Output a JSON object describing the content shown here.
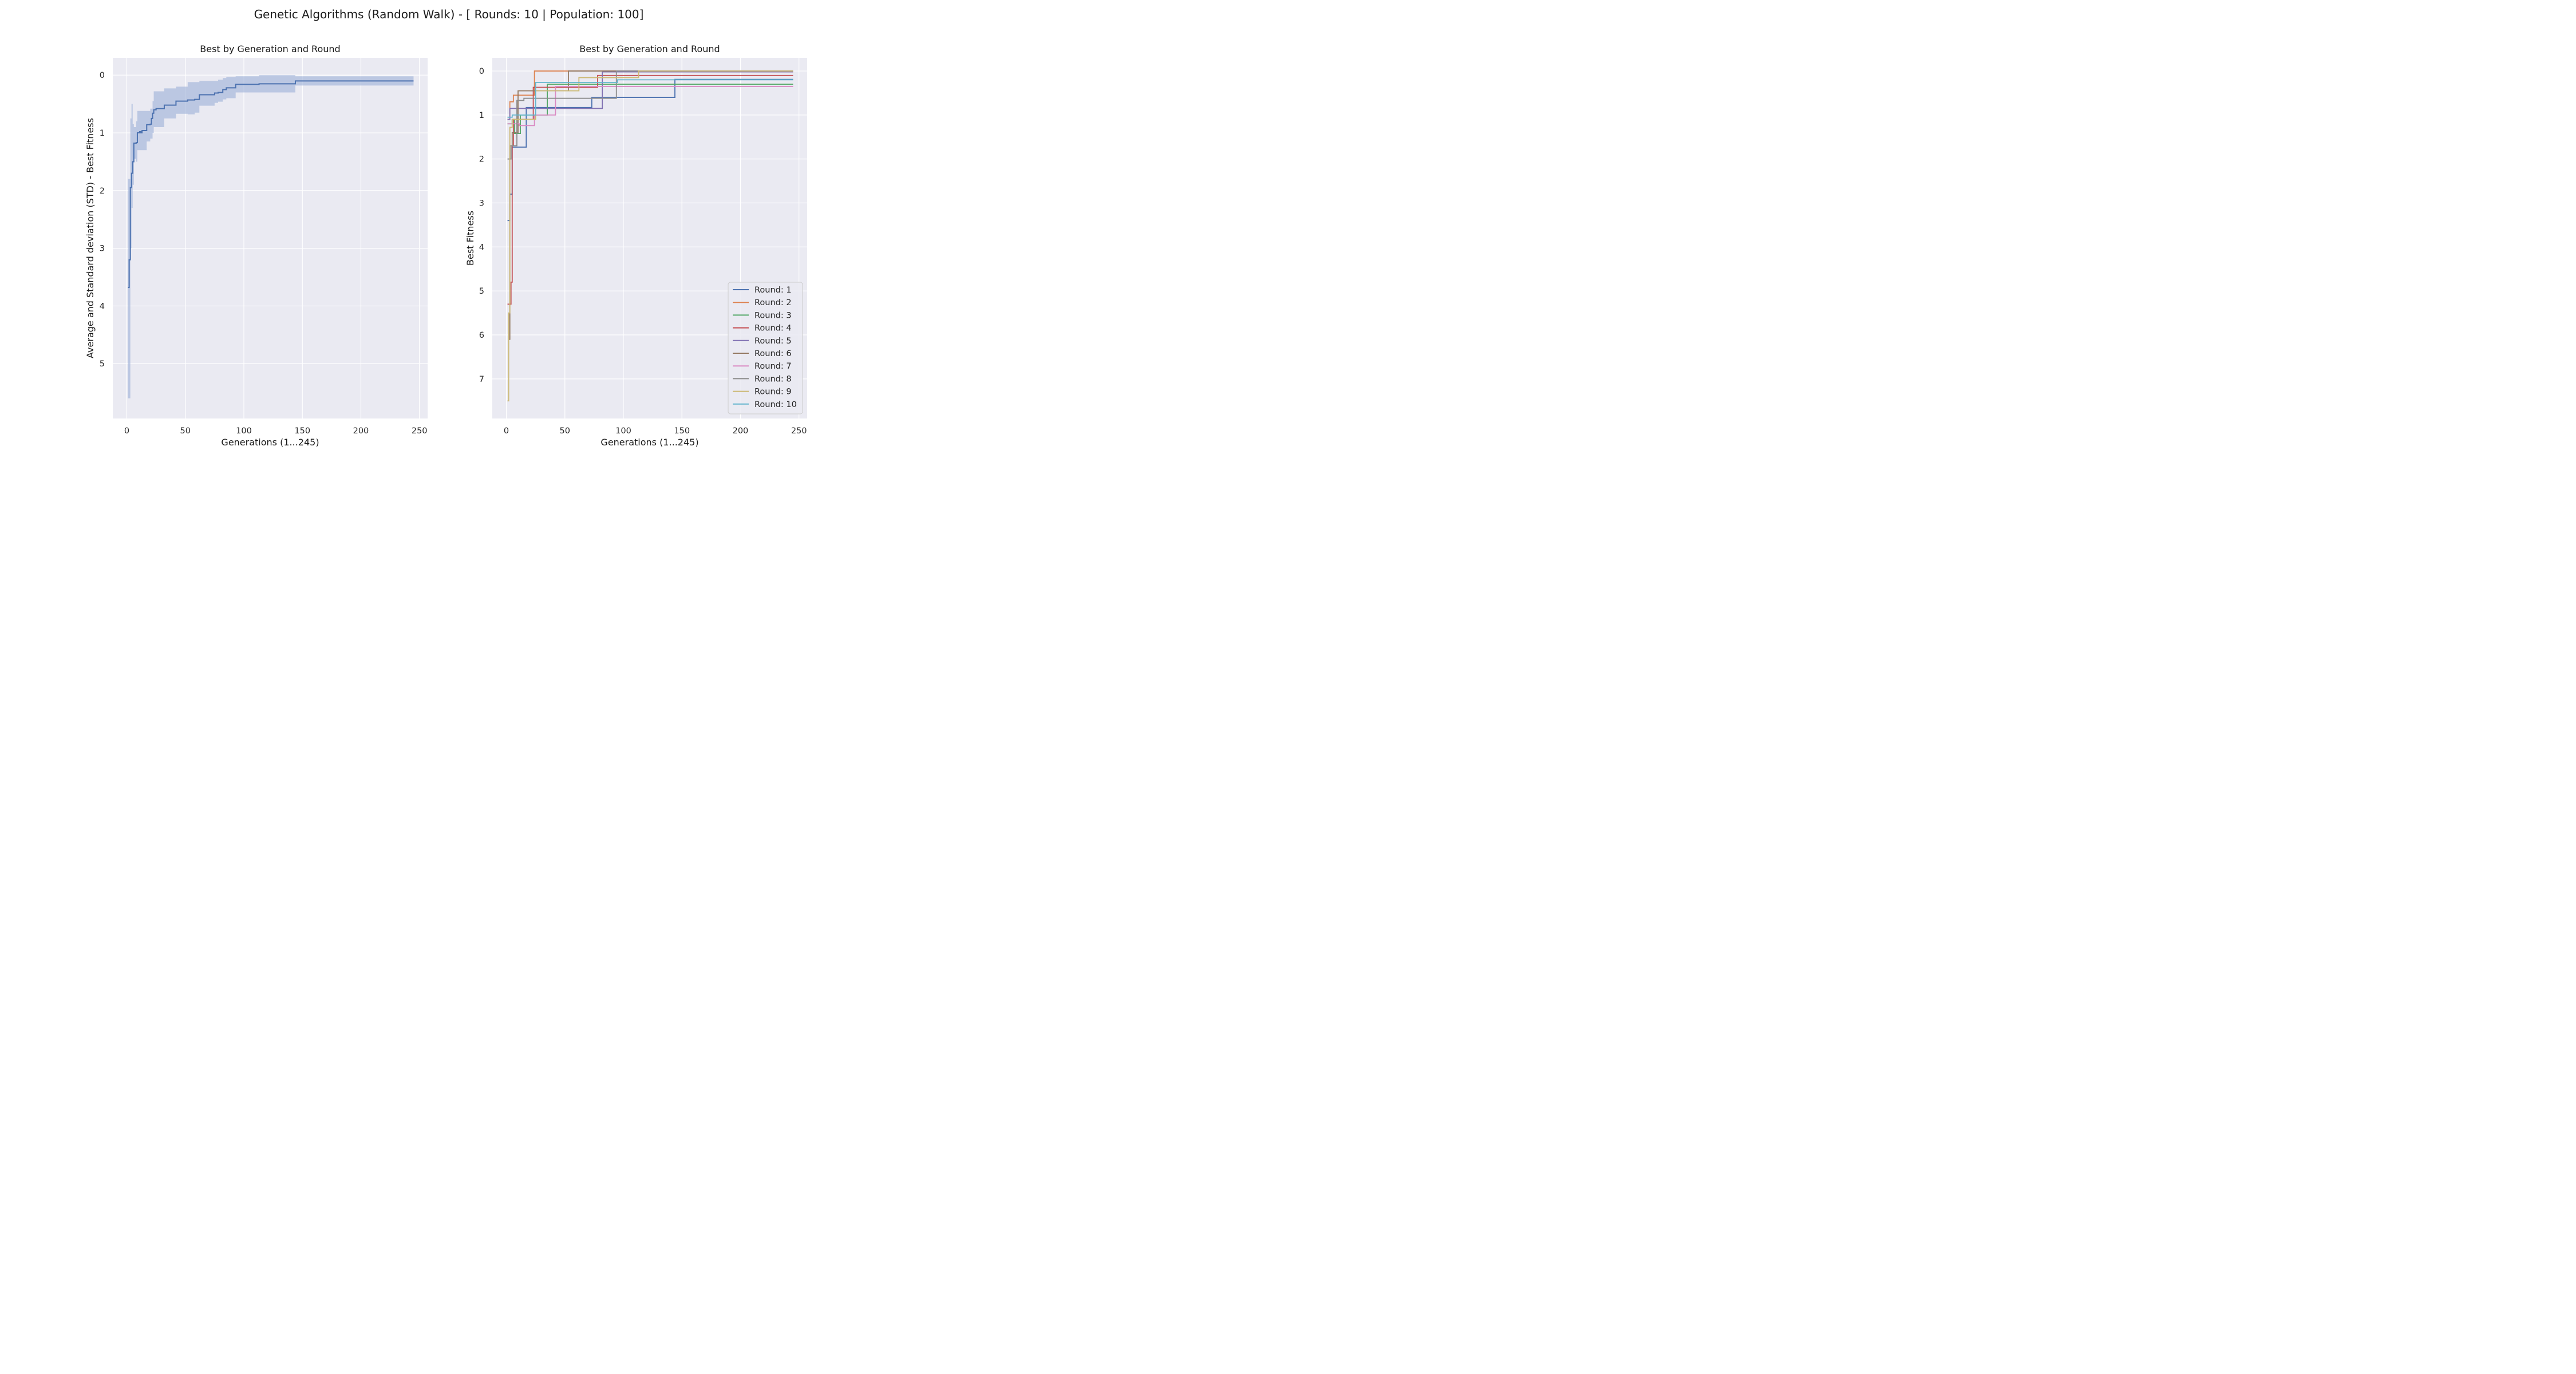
{
  "figure_title": "Genetic Algorithms (Random Walk) - [ Rounds: 10 | Population: 100]",
  "colors": {
    "axes_bg": "#eaeaf2",
    "grid": "#ffffff",
    "mean_line": "#4c72b0",
    "band": "#a1b4d8",
    "rounds": [
      "#4c72b0",
      "#dd8452",
      "#55a868",
      "#c44e52",
      "#8172b3",
      "#937860",
      "#da8bc3",
      "#8c8c8c",
      "#ccb974",
      "#64b5cd"
    ]
  },
  "chart_data": [
    {
      "type": "line",
      "title": "Best by Generation and Round",
      "xlabel": "Generations (1...245)",
      "ylabel": "Average and Standard deviation (STD) - Best Fitness",
      "xlim": [
        -12,
        257
      ],
      "ylim": [
        5.95,
        -0.3
      ],
      "y_inverted": true,
      "xticks": [
        "0",
        "50",
        "100",
        "150",
        "200",
        "250"
      ],
      "yticks": [
        "0",
        "1",
        "2",
        "3",
        "4",
        "5"
      ],
      "grid": true,
      "series": [
        {
          "kind": "mean_with_std_band",
          "steps": [
            [
              1,
              3.68
            ],
            [
              2,
              3.2
            ],
            [
              3,
              1.95
            ],
            [
              4,
              1.7
            ],
            [
              5,
              1.5
            ],
            [
              6,
              1.18
            ],
            [
              8,
              1.17
            ],
            [
              9,
              1.0
            ],
            [
              11,
              0.98
            ],
            [
              12,
              1.0
            ],
            [
              13,
              0.96
            ],
            [
              17,
              0.86
            ],
            [
              20,
              0.85
            ],
            [
              21,
              0.75
            ],
            [
              22,
              0.66
            ],
            [
              23,
              0.6
            ],
            [
              25,
              0.58
            ],
            [
              32,
              0.52
            ],
            [
              42,
              0.45
            ],
            [
              52,
              0.43
            ],
            [
              58,
              0.42
            ],
            [
              62,
              0.34
            ],
            [
              75,
              0.31
            ],
            [
              78,
              0.3
            ],
            [
              82,
              0.25
            ],
            [
              85,
              0.22
            ],
            [
              93,
              0.16
            ],
            [
              113,
              0.15
            ],
            [
              144,
              0.1
            ],
            [
              245,
              0.1
            ]
          ],
          "band": [
            [
              1,
              5.6,
              1.8
            ],
            [
              3,
              3.0,
              0.75
            ],
            [
              4,
              2.3,
              0.5
            ],
            [
              5,
              1.9,
              0.85
            ],
            [
              6,
              1.45,
              0.9
            ],
            [
              8,
              1.5,
              0.8
            ],
            [
              9,
              1.3,
              0.62
            ],
            [
              12,
              1.3,
              0.62
            ],
            [
              13,
              1.3,
              0.62
            ],
            [
              17,
              1.15,
              0.62
            ],
            [
              20,
              1.1,
              0.58
            ],
            [
              22,
              1.0,
              0.45
            ],
            [
              23,
              0.9,
              0.28
            ],
            [
              32,
              0.75,
              0.23
            ],
            [
              42,
              0.67,
              0.2
            ],
            [
              52,
              0.68,
              0.12
            ],
            [
              58,
              0.65,
              0.12
            ],
            [
              62,
              0.53,
              0.1
            ],
            [
              75,
              0.48,
              0.1
            ],
            [
              78,
              0.46,
              0.08
            ],
            [
              82,
              0.42,
              0.05
            ],
            [
              85,
              0.4,
              0.03
            ],
            [
              93,
              0.3,
              0.02
            ],
            [
              113,
              0.3,
              0.0
            ],
            [
              144,
              0.18,
              0.02
            ],
            [
              245,
              0.18,
              0.02
            ]
          ]
        }
      ]
    },
    {
      "type": "line",
      "title": "Best by Generation and Round",
      "xlabel": "Generations (1...245)",
      "ylabel": "Best Fitness",
      "xlim": [
        -12,
        257
      ],
      "ylim": [
        7.9,
        -0.3
      ],
      "y_inverted": true,
      "xticks": [
        "0",
        "50",
        "100",
        "150",
        "200",
        "250"
      ],
      "yticks": [
        "0",
        "1",
        "2",
        "3",
        "4",
        "5",
        "6",
        "7"
      ],
      "grid": true,
      "legend_position": "lower-right",
      "series": [
        {
          "name": "Round: 1",
          "steps": [
            [
              1,
              3.4
            ],
            [
              3,
              2.8
            ],
            [
              5,
              1.73
            ],
            [
              17,
              0.83
            ],
            [
              73,
              0.6
            ],
            [
              144,
              0.19
            ],
            [
              245,
              0.19
            ]
          ]
        },
        {
          "name": "Round: 2",
          "steps": [
            [
              1,
              1.1
            ],
            [
              3,
              0.7
            ],
            [
              6,
              0.55
            ],
            [
              24,
              0.0
            ],
            [
              245,
              0.0
            ]
          ]
        },
        {
          "name": "Round: 3",
          "steps": [
            [
              1,
              1.2
            ],
            [
              5,
              1.1
            ],
            [
              7,
              1.42
            ],
            [
              12,
              1.0
            ],
            [
              35,
              0.3
            ],
            [
              245,
              0.3
            ]
          ]
        },
        {
          "name": "Round: 4",
          "steps": [
            [
              1,
              5.3
            ],
            [
              4,
              4.8
            ],
            [
              5,
              1.7
            ],
            [
              6,
              1.1
            ],
            [
              23,
              0.37
            ],
            [
              78,
              0.1
            ],
            [
              245,
              0.1
            ]
          ]
        },
        {
          "name": "Round: 5",
          "steps": [
            [
              1,
              1.1
            ],
            [
              3,
              0.85
            ],
            [
              82,
              0.02
            ],
            [
              245,
              0.02
            ]
          ]
        },
        {
          "name": "Round: 6",
          "steps": [
            [
              2,
              6.1
            ],
            [
              3,
              1.7
            ],
            [
              5,
              1.4
            ],
            [
              10,
              0.45
            ],
            [
              53,
              0.0
            ],
            [
              245,
              0.0
            ]
          ]
        },
        {
          "name": "Round: 7",
          "steps": [
            [
              1,
              1.2
            ],
            [
              11,
              1.24
            ],
            [
              24,
              1.0
            ],
            [
              42,
              0.35
            ],
            [
              245,
              0.35
            ]
          ]
        },
        {
          "name": "Round: 8",
          "steps": [
            [
              1,
              2.0
            ],
            [
              4,
              1.7
            ],
            [
              9,
              0.67
            ],
            [
              15,
              0.62
            ],
            [
              94,
              0.0
            ],
            [
              245,
              0.0
            ]
          ]
        },
        {
          "name": "Round: 9",
          "steps": [
            [
              1,
              7.5
            ],
            [
              2,
              5.5
            ],
            [
              3,
              1.28
            ],
            [
              5,
              1.1
            ],
            [
              25,
              0.45
            ],
            [
              62,
              0.15
            ],
            [
              113,
              0.0
            ],
            [
              245,
              0.0
            ]
          ]
        },
        {
          "name": "Round: 10",
          "steps": [
            [
              1,
              1.05
            ],
            [
              5,
              1.0
            ],
            [
              25,
              0.26
            ],
            [
              95,
              0.2
            ],
            [
              245,
              0.2
            ]
          ]
        }
      ]
    }
  ]
}
